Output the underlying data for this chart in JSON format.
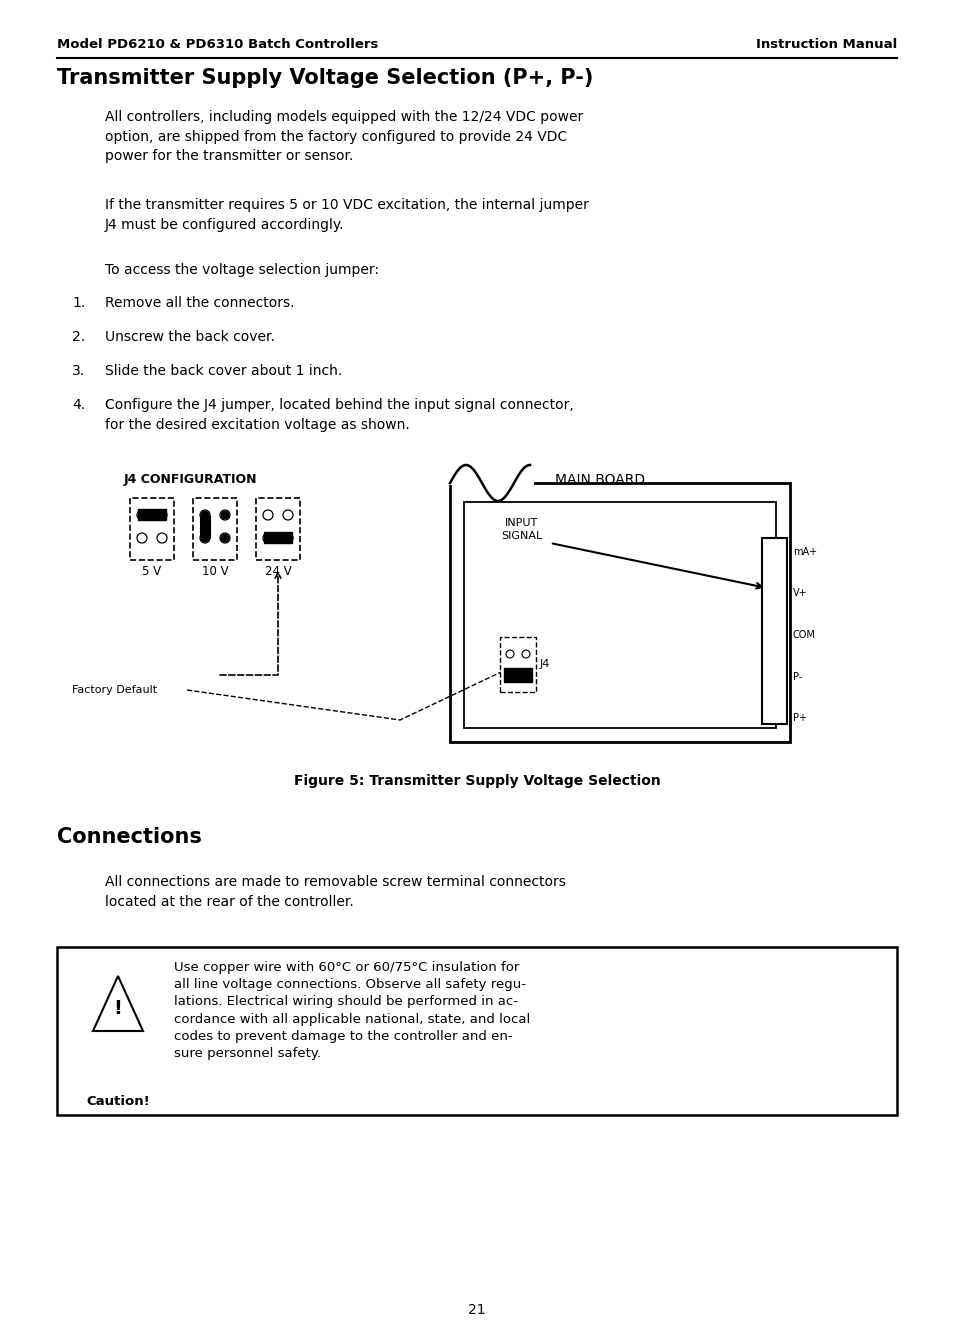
{
  "header_left": "Model PD6210 & PD6310 Batch Controllers",
  "header_right": "Instruction Manual",
  "section_title": "Transmitter Supply Voltage Selection (P+, P-)",
  "para1": "All controllers, including models equipped with the 12/24 VDC power\noption, are shipped from the factory configured to provide 24 VDC\npower for the transmitter or sensor.",
  "para2": "If the transmitter requires 5 or 10 VDC excitation, the internal jumper\nJ4 must be configured accordingly.",
  "para3": "To access the voltage selection jumper:",
  "list_items": [
    "Remove all the connectors.",
    "Unscrew the back cover.",
    "Slide the back cover about 1 inch.",
    "Configure the J4 jumper, located behind the input signal connector,\nfor the desired excitation voltage as shown."
  ],
  "fig_caption": "Figure 5: Transmitter Supply Voltage Selection",
  "section2_title": "Connections",
  "para4": "All connections are made to removable screw terminal connectors\nlocated at the rear of the controller.",
  "caution_text": "Use copper wire with 60°C or 60/75°C insulation for\nall line voltage connections. Observe all safety regu-\nlations. Electrical wiring should be performed in ac-\ncordance with all applicable national, state, and local\ncodes to prevent damage to the controller and en-\nsure personnel safety.",
  "page_num": "21",
  "bg_color": "#ffffff",
  "text_color": "#000000"
}
